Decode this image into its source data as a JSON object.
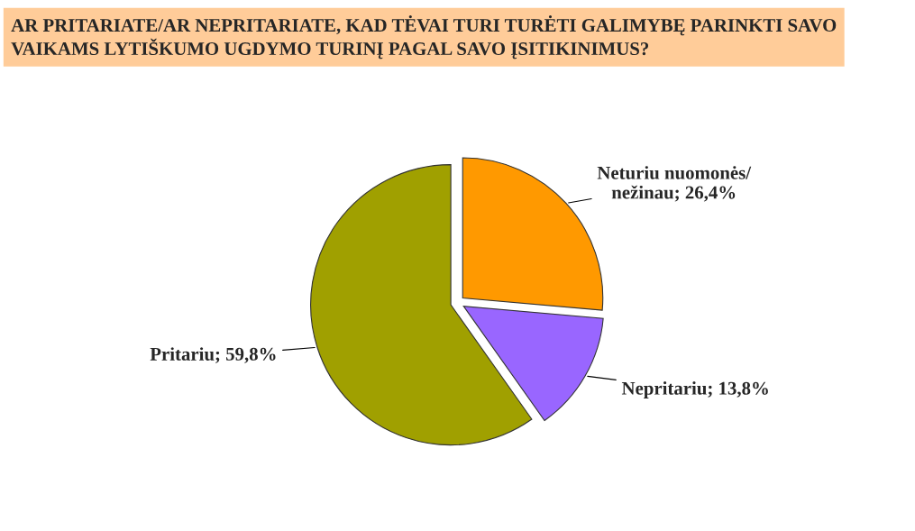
{
  "chart_data": {
    "type": "pie",
    "title": "AR PRITARIATE/AR NEPRITARIATE, KAD TĖVAI TURI TURĖTI GALIMYBĘ PARINKTI SAVO VAIKAMS LYTIŠKUMO UGDYMO TURINĮ PAGAL SAVO ĮSITIKINIMUS?",
    "categories": [
      "Neturiu nuomonės/\nnežinau",
      "Nepritariu",
      "Pritariu"
    ],
    "values": [
      26.4,
      13.8,
      59.8
    ],
    "colors": [
      "#ff9900",
      "#9966ff",
      "#a0a000"
    ],
    "value_labels": [
      "26,4%",
      "13,8%",
      "59,8%"
    ],
    "legend": false
  }
}
